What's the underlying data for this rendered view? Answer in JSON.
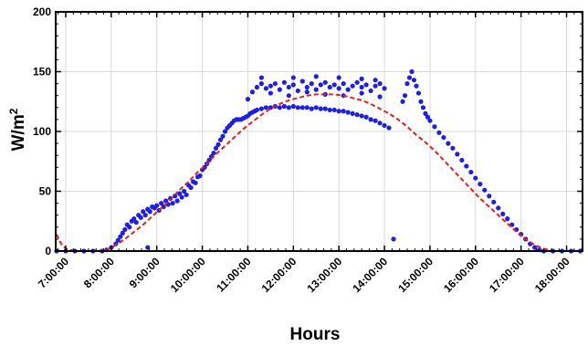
{
  "chart_data": {
    "type": "scatter",
    "xlabel": "Hours",
    "ylabel": "W/m",
    "ylabel_superscript": "2",
    "xlim": [
      6.78,
      18.35
    ],
    "ylim": [
      0,
      200
    ],
    "x_ticks": [
      {
        "value": 7,
        "label": "7:00:00"
      },
      {
        "value": 8,
        "label": "8:00:00"
      },
      {
        "value": 9,
        "label": "9:00:00"
      },
      {
        "value": 10,
        "label": "10:00:00"
      },
      {
        "value": 11,
        "label": "11:00:00"
      },
      {
        "value": 12,
        "label": "12:00:00"
      },
      {
        "value": 13,
        "label": "13:00:00"
      },
      {
        "value": 14,
        "label": "14:00:00"
      },
      {
        "value": 15,
        "label": "15:00:00"
      },
      {
        "value": 16,
        "label": "16:00:00"
      },
      {
        "value": 17,
        "label": "17:00:00"
      },
      {
        "value": 18,
        "label": "18:00:00"
      }
    ],
    "y_ticks": [
      0,
      50,
      100,
      150,
      200
    ],
    "grid": true,
    "series": [
      {
        "style": "scatter",
        "color": "#1f1fe0",
        "points": [
          [
            6.8,
            0
          ],
          [
            7.0,
            0
          ],
          [
            7.2,
            0
          ],
          [
            7.4,
            0
          ],
          [
            7.6,
            0
          ],
          [
            7.8,
            0
          ],
          [
            7.9,
            1
          ],
          [
            8.0,
            3
          ],
          [
            8.1,
            6
          ],
          [
            8.15,
            9
          ],
          [
            8.2,
            12
          ],
          [
            8.25,
            15
          ],
          [
            8.3,
            18
          ],
          [
            8.35,
            22
          ],
          [
            8.4,
            20
          ],
          [
            8.45,
            25
          ],
          [
            8.5,
            27
          ],
          [
            8.55,
            24
          ],
          [
            8.6,
            30
          ],
          [
            8.65,
            28
          ],
          [
            8.7,
            33
          ],
          [
            8.75,
            30
          ],
          [
            8.8,
            35
          ],
          [
            8.85,
            33
          ],
          [
            8.9,
            37
          ],
          [
            8.95,
            36
          ],
          [
            9.0,
            38
          ],
          [
            9.05,
            34
          ],
          [
            9.1,
            40
          ],
          [
            9.15,
            37
          ],
          [
            9.2,
            42
          ],
          [
            9.25,
            39
          ],
          [
            9.3,
            44
          ],
          [
            9.35,
            40
          ],
          [
            9.4,
            46
          ],
          [
            9.45,
            42
          ],
          [
            9.5,
            48
          ],
          [
            9.55,
            45
          ],
          [
            9.6,
            50
          ],
          [
            9.65,
            47
          ],
          [
            9.7,
            55
          ],
          [
            9.75,
            53
          ],
          [
            9.8,
            58
          ],
          [
            9.85,
            57
          ],
          [
            9.9,
            62
          ],
          [
            9.95,
            63
          ],
          [
            10.0,
            68
          ],
          [
            10.05,
            70
          ],
          [
            10.1,
            73
          ],
          [
            10.15,
            76
          ],
          [
            10.2,
            79
          ],
          [
            10.25,
            82
          ],
          [
            10.3,
            86
          ],
          [
            10.35,
            89
          ],
          [
            10.4,
            93
          ],
          [
            10.45,
            96
          ],
          [
            10.5,
            100
          ],
          [
            10.55,
            103
          ],
          [
            10.6,
            105
          ],
          [
            10.65,
            107
          ],
          [
            10.7,
            109
          ],
          [
            10.75,
            110
          ],
          [
            10.8,
            110
          ],
          [
            10.85,
            110
          ],
          [
            10.9,
            111
          ],
          [
            10.95,
            112
          ],
          [
            11.0,
            113
          ],
          [
            11.05,
            115
          ],
          [
            11.1,
            116
          ],
          [
            11.15,
            117
          ],
          [
            11.2,
            118
          ],
          [
            11.3,
            119
          ],
          [
            11.4,
            120
          ],
          [
            11.5,
            120
          ],
          [
            11.6,
            121
          ],
          [
            11.7,
            120
          ],
          [
            11.8,
            121
          ],
          [
            11.9,
            120
          ],
          [
            12.0,
            121
          ],
          [
            12.1,
            120
          ],
          [
            12.2,
            120
          ],
          [
            12.3,
            120
          ],
          [
            12.4,
            119
          ],
          [
            12.5,
            120
          ],
          [
            12.6,
            119
          ],
          [
            12.7,
            119
          ],
          [
            12.8,
            118
          ],
          [
            12.9,
            118
          ],
          [
            13.0,
            117
          ],
          [
            13.1,
            117
          ],
          [
            13.2,
            116
          ],
          [
            13.3,
            115
          ],
          [
            13.4,
            114
          ],
          [
            13.5,
            113
          ],
          [
            13.6,
            112
          ],
          [
            13.7,
            110
          ],
          [
            13.8,
            109
          ],
          [
            13.9,
            107
          ],
          [
            14.0,
            105
          ],
          [
            14.1,
            103
          ],
          [
            11.0,
            127
          ],
          [
            11.1,
            133
          ],
          [
            11.2,
            137
          ],
          [
            11.3,
            140
          ],
          [
            11.4,
            136
          ],
          [
            11.5,
            138
          ],
          [
            11.6,
            140
          ],
          [
            11.7,
            135
          ],
          [
            11.8,
            141
          ],
          [
            11.9,
            137
          ],
          [
            12.0,
            139
          ],
          [
            12.1,
            134
          ],
          [
            12.2,
            142
          ],
          [
            12.3,
            137
          ],
          [
            12.4,
            140
          ],
          [
            12.5,
            135
          ],
          [
            12.6,
            139
          ],
          [
            12.7,
            141
          ],
          [
            12.8,
            137
          ],
          [
            12.9,
            139
          ],
          [
            13.0,
            136
          ],
          [
            13.1,
            140
          ],
          [
            13.2,
            135
          ],
          [
            13.3,
            138
          ],
          [
            13.4,
            141
          ],
          [
            13.5,
            137
          ],
          [
            13.6,
            139
          ],
          [
            13.7,
            134
          ],
          [
            13.8,
            138
          ],
          [
            13.9,
            140
          ],
          [
            14.0,
            136
          ],
          [
            11.5,
            132
          ],
          [
            11.9,
            130
          ],
          [
            12.3,
            133
          ],
          [
            12.7,
            131
          ],
          [
            13.1,
            130
          ],
          [
            13.5,
            132
          ],
          [
            13.9,
            129
          ],
          [
            12.0,
            145
          ],
          [
            12.5,
            146
          ],
          [
            13.0,
            145
          ],
          [
            13.5,
            144
          ],
          [
            13.8,
            143
          ],
          [
            11.3,
            145
          ],
          [
            14.2,
            10
          ],
          [
            14.4,
            125
          ],
          [
            14.45,
            130
          ],
          [
            14.5,
            140
          ],
          [
            14.55,
            145
          ],
          [
            14.6,
            150
          ],
          [
            14.65,
            143
          ],
          [
            14.7,
            138
          ],
          [
            14.75,
            132
          ],
          [
            14.8,
            125
          ],
          [
            14.85,
            120
          ],
          [
            14.9,
            115
          ],
          [
            14.95,
            112
          ],
          [
            15.0,
            109
          ],
          [
            15.1,
            104
          ],
          [
            15.2,
            99
          ],
          [
            15.3,
            95
          ],
          [
            15.4,
            90
          ],
          [
            15.5,
            86
          ],
          [
            15.6,
            81
          ],
          [
            15.7,
            76
          ],
          [
            15.8,
            71
          ],
          [
            15.9,
            66
          ],
          [
            16.0,
            61
          ],
          [
            16.1,
            56
          ],
          [
            16.2,
            51
          ],
          [
            16.3,
            46
          ],
          [
            16.4,
            41
          ],
          [
            16.5,
            36
          ],
          [
            16.6,
            31
          ],
          [
            16.7,
            27
          ],
          [
            16.8,
            22
          ],
          [
            16.9,
            18
          ],
          [
            17.0,
            14
          ],
          [
            17.1,
            10
          ],
          [
            17.2,
            6
          ],
          [
            17.3,
            3
          ],
          [
            17.4,
            1
          ],
          [
            17.5,
            0
          ],
          [
            17.7,
            0
          ],
          [
            17.9,
            0
          ],
          [
            18.1,
            0
          ],
          [
            18.3,
            0
          ],
          [
            8.8,
            3
          ]
        ]
      },
      {
        "style": "dashed-line",
        "color": "#e0201e",
        "points": [
          [
            6.8,
            14
          ],
          [
            6.9,
            6
          ],
          [
            7.0,
            2
          ],
          [
            7.2,
            0
          ],
          [
            7.6,
            0
          ],
          [
            7.9,
            1
          ],
          [
            8.1,
            5
          ],
          [
            8.3,
            10
          ],
          [
            8.5,
            16
          ],
          [
            8.7,
            22
          ],
          [
            8.9,
            29
          ],
          [
            9.1,
            36
          ],
          [
            9.3,
            43
          ],
          [
            9.5,
            51
          ],
          [
            9.7,
            58
          ],
          [
            9.9,
            66
          ],
          [
            10.1,
            73
          ],
          [
            10.3,
            81
          ],
          [
            10.5,
            88
          ],
          [
            10.7,
            95
          ],
          [
            10.9,
            102
          ],
          [
            11.1,
            108
          ],
          [
            11.3,
            114
          ],
          [
            11.5,
            119
          ],
          [
            11.7,
            123
          ],
          [
            11.9,
            126
          ],
          [
            12.1,
            128
          ],
          [
            12.3,
            130
          ],
          [
            12.5,
            131
          ],
          [
            12.7,
            131
          ],
          [
            12.9,
            131
          ],
          [
            13.1,
            130
          ],
          [
            13.3,
            128
          ],
          [
            13.5,
            126
          ],
          [
            13.7,
            123
          ],
          [
            13.9,
            119
          ],
          [
            14.1,
            115
          ],
          [
            14.3,
            110
          ],
          [
            14.5,
            104
          ],
          [
            14.7,
            97
          ],
          [
            14.9,
            91
          ],
          [
            15.1,
            84
          ],
          [
            15.3,
            76
          ],
          [
            15.5,
            68
          ],
          [
            15.7,
            60
          ],
          [
            15.9,
            52
          ],
          [
            16.1,
            44
          ],
          [
            16.3,
            37
          ],
          [
            16.5,
            30
          ],
          [
            16.7,
            23
          ],
          [
            16.9,
            16
          ],
          [
            17.1,
            10
          ],
          [
            17.3,
            5
          ],
          [
            17.5,
            2
          ],
          [
            17.7,
            0
          ],
          [
            18.0,
            0
          ],
          [
            18.3,
            0
          ]
        ]
      }
    ]
  }
}
